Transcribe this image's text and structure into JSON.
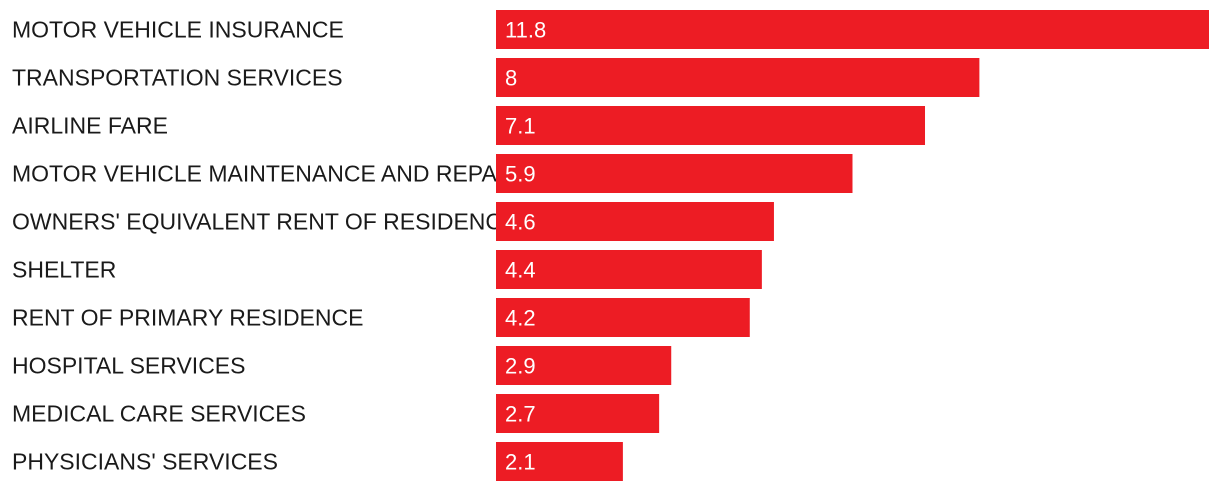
{
  "chart_data": {
    "type": "bar",
    "orientation": "horizontal",
    "categories": [
      "MOTOR VEHICLE INSURANCE",
      "TRANSPORTATION SERVICES",
      "AIRLINE FARE",
      "MOTOR VEHICLE MAINTENANCE AND REPAIR",
      "OWNERS' EQUIVALENT RENT OF RESIDENCES",
      "SHELTER",
      "RENT OF PRIMARY RESIDENCE",
      "HOSPITAL SERVICES",
      "MEDICAL CARE SERVICES",
      "PHYSICIANS' SERVICES"
    ],
    "values": [
      11.8,
      8,
      7.1,
      5.9,
      4.6,
      4.4,
      4.2,
      2.9,
      2.7,
      2.1
    ],
    "value_labels": [
      "11.8",
      "8",
      "7.1",
      "5.9",
      "4.6",
      "4.4",
      "4.2",
      "2.9",
      "2.7",
      "2.1"
    ],
    "xlim": [
      0,
      11.8
    ],
    "grid": false,
    "legend": "none",
    "bar_color": "#ed1c24"
  }
}
